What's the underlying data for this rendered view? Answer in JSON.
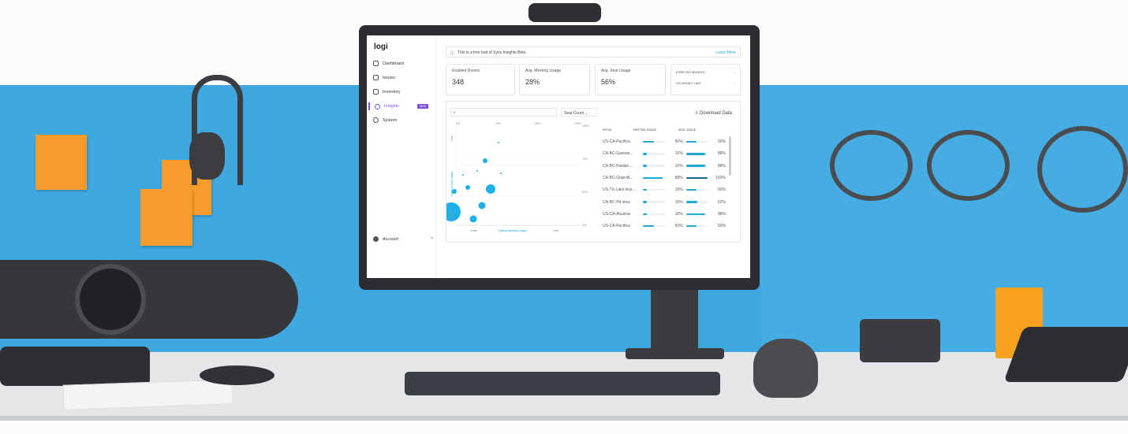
{
  "app": {
    "logo": "logi"
  },
  "sidebar": {
    "items": [
      {
        "label": "Dashboard"
      },
      {
        "label": "Issues"
      },
      {
        "label": "Inventory"
      },
      {
        "label": "Insights",
        "badge": "NEW",
        "active": true
      },
      {
        "label": "System"
      }
    ],
    "account": "Account"
  },
  "banner": {
    "text": "This is a free trial of Sync Insights Beta",
    "link": "Learn More"
  },
  "cards": [
    {
      "title": "Enabled Rooms",
      "value": "348"
    },
    {
      "title": "Avg. Meeting Usage",
      "value": "28%"
    },
    {
      "title": "Avg. Seat Usage",
      "value": "56%"
    }
  ],
  "links": [
    {
      "label": "EXPECTED INSIGHTS"
    },
    {
      "label": "OCCUPANCY LIMIT"
    }
  ],
  "filters": {
    "search_placeholder": "",
    "dropdown": "Seat Count",
    "download": "Download Data"
  },
  "chart": {
    "xlabel": "Optimal Meeting Usage",
    "x_left": "Under",
    "x_right": "Over",
    "ylabel": "Optimal Seat Usage",
    "y_top": "Over",
    "y_bottom": "Under",
    "top_ticks": [
      "0%",
      "25%",
      "50%",
      "100%"
    ],
    "right_ticks": [
      "100%",
      "75%",
      "50%",
      "0%"
    ]
  },
  "table": {
    "headers": [
      "ROOM",
      "MEETING USAGE",
      "SEAT USAGE"
    ],
    "rows": [
      {
        "room": "US-CA-Pacifica",
        "meeting": "50%",
        "seat": "50%",
        "m": 50,
        "s": 50
      },
      {
        "room": "CA-BC-Gastow...",
        "meeting": "16%",
        "seat": "88%",
        "m": 16,
        "s": 88
      },
      {
        "room": "CA-BC-Kitsilan...",
        "meeting": "16%",
        "seat": "88%",
        "m": 16,
        "s": 88
      },
      {
        "room": "CA-BC-Granvill...",
        "meeting": "88%",
        "seat": "160%",
        "m": 88,
        "s": 100
      },
      {
        "room": "US-TX-Lake Aus...",
        "meeting": "16%",
        "seat": "50%",
        "m": 16,
        "s": 50
      },
      {
        "room": "CA-BC-Pd view",
        "meeting": "16%",
        "seat": "52%",
        "m": 16,
        "s": 52
      },
      {
        "room": "US-CA-Alcatraz",
        "meeting": "16%",
        "seat": "88%",
        "m": 16,
        "s": 88
      },
      {
        "room": "US-CA-Pacifica",
        "meeting": "50%",
        "seat": "50%",
        "m": 50,
        "s": 50
      }
    ]
  },
  "colors": {
    "accent": "#1eaad4",
    "panel": "#3fa8e0",
    "nav_active": "#7b4fd6"
  }
}
